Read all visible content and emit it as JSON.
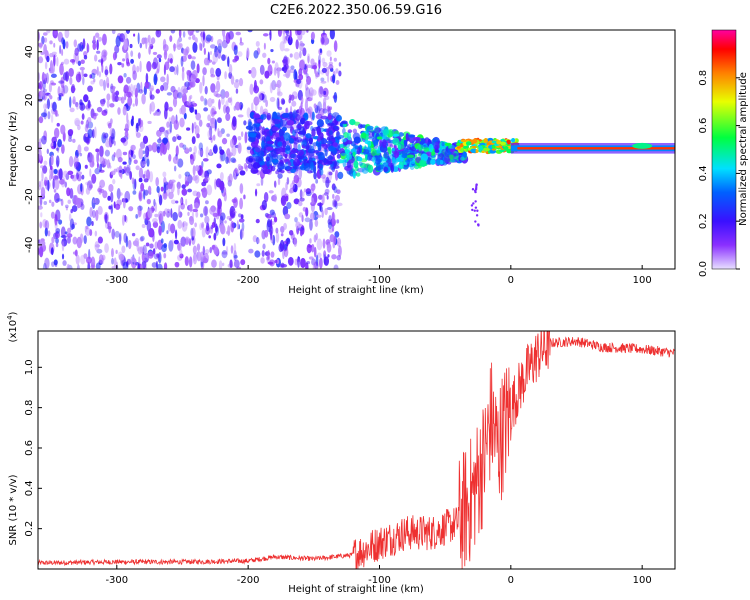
{
  "figure_title": "C2E6.2022.350.06.59.G16",
  "chart_data": [
    {
      "type": "heatmap",
      "xlabel": "Height of straight line (km)",
      "ylabel": "Frequency (Hz)",
      "xlim": [
        -360,
        125
      ],
      "ylim": [
        -50,
        49
      ],
      "x_ticks": [
        -300,
        -200,
        -100,
        0,
        100
      ],
      "y_ticks": [
        -40,
        -20,
        0,
        20,
        40
      ],
      "colorbar": {
        "label": "Normalized spectral amplitude",
        "range": [
          0,
          1
        ],
        "ticks": [
          0.0,
          0.2,
          0.4,
          0.6,
          0.8
        ],
        "colormap": [
          "#e8e0ff",
          "#6a00ff",
          "#2a30ff",
          "#00d0ff",
          "#00ff40",
          "#e8ff00",
          "#ff8000",
          "#ff0000",
          "#ff00a0"
        ]
      },
      "features": [
        {
          "x_range": [
            -360,
            -130
          ],
          "f_range": [
            -50,
            49
          ],
          "level": 0.12
        },
        {
          "x_range": [
            -200,
            -130
          ],
          "f_range": [
            -8,
            12
          ],
          "level": 0.25
        },
        {
          "x_range": [
            -130,
            -40
          ],
          "f_range": [
            -12,
            12
          ],
          "level": 0.35
        },
        {
          "x_range": [
            -40,
            0
          ],
          "f_range": [
            -3,
            3
          ],
          "level": 0.5
        },
        {
          "x_range": [
            0,
            125
          ],
          "f_range": [
            -1,
            1
          ],
          "level": 0.9
        }
      ]
    },
    {
      "type": "line",
      "xlabel": "Height of straight line (km)",
      "ylabel": "SNR (10 * v/v)",
      "y_multiplier": "(x10^4)",
      "xlim": [
        -360,
        125
      ],
      "ylim": [
        0,
        11800
      ],
      "x_ticks": [
        -300,
        -200,
        -100,
        0,
        100
      ],
      "y_ticks": [
        2000,
        4000,
        6000,
        8000,
        10000
      ],
      "y_tick_labels": [
        "0.2",
        "0.4",
        "0.6",
        "0.8",
        "1.0"
      ],
      "color": "#ee3030",
      "x": [
        -360,
        -300,
        -250,
        -200,
        -180,
        -150,
        -120,
        -100,
        -80,
        -60,
        -40,
        -30,
        -20,
        -15,
        -10,
        -5,
        0,
        10,
        20,
        30,
        50,
        70,
        100,
        125
      ],
      "y": [
        300,
        350,
        350,
        400,
        600,
        500,
        700,
        1300,
        1800,
        1800,
        2300,
        3500,
        5500,
        7500,
        6000,
        7000,
        8000,
        9500,
        10600,
        11200,
        11300,
        11000,
        10900,
        10700
      ]
    }
  ]
}
